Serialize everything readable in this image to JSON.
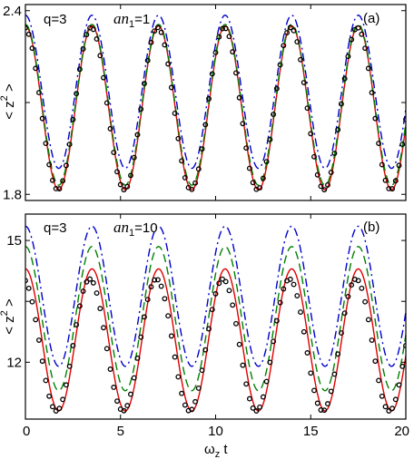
{
  "chart_data": [
    {
      "type": "line",
      "panel_label": "(a)",
      "annotation_q": "q=3",
      "annotation_a_prefix": "an",
      "annotation_a_sub": "1",
      "annotation_a_value": "=1",
      "ylabel": "< z̅ 2 >",
      "xlim": [
        0,
        20
      ],
      "ylim": [
        1.78,
        2.42
      ],
      "yticks": [
        1.8,
        2.4
      ],
      "ytick_labels": [
        "1.8",
        "2.4"
      ],
      "yminor_ticks": [
        2.1
      ],
      "period": 3.5,
      "colors": {
        "red": "#e00000",
        "blue": "#0000cc",
        "green": "#008000",
        "black": "#000000"
      },
      "series": [
        {
          "style": "solid",
          "color": "red",
          "max": 2.35,
          "min": 1.815
        },
        {
          "style": "dashdot",
          "color": "blue",
          "max": 2.385,
          "min": 1.885
        },
        {
          "style": "dashed",
          "color": "green",
          "max": 2.355,
          "min": 1.83
        },
        {
          "style": "circles",
          "color": "black",
          "max": 2.345,
          "min": 1.815,
          "phase_shift": -0.05
        }
      ]
    },
    {
      "type": "line",
      "panel_label": "(b)",
      "annotation_q": "q=3",
      "annotation_a_prefix": "an",
      "annotation_a_sub": "1",
      "annotation_a_value": "=10",
      "ylabel": "< z̅ 2 >",
      "xlabel_main": "ω",
      "xlabel_sub": "z",
      "xlabel_tail": " t",
      "xlim": [
        0,
        20
      ],
      "ylim": [
        10.6,
        15.65
      ],
      "yticks": [
        12,
        15
      ],
      "ytick_labels": [
        "12",
        "15"
      ],
      "yminor_ticks": [
        13.5
      ],
      "xticks": [
        0,
        5,
        10,
        15,
        20
      ],
      "xtick_labels": [
        "0",
        "5",
        "10",
        "15",
        "20"
      ],
      "period": 3.5,
      "colors": {
        "red": "#e00000",
        "blue": "#0000cc",
        "green": "#008000",
        "black": "#000000"
      },
      "series": [
        {
          "style": "solid",
          "color": "red",
          "max": 14.3,
          "min": 10.8
        },
        {
          "style": "dashdot",
          "color": "blue",
          "max": 15.35,
          "min": 11.9
        },
        {
          "style": "dashed",
          "color": "green",
          "max": 14.85,
          "min": 11.3
        },
        {
          "style": "circles",
          "color": "black",
          "max": 14.05,
          "min": 10.8,
          "phase_shift": -0.12
        }
      ]
    }
  ]
}
